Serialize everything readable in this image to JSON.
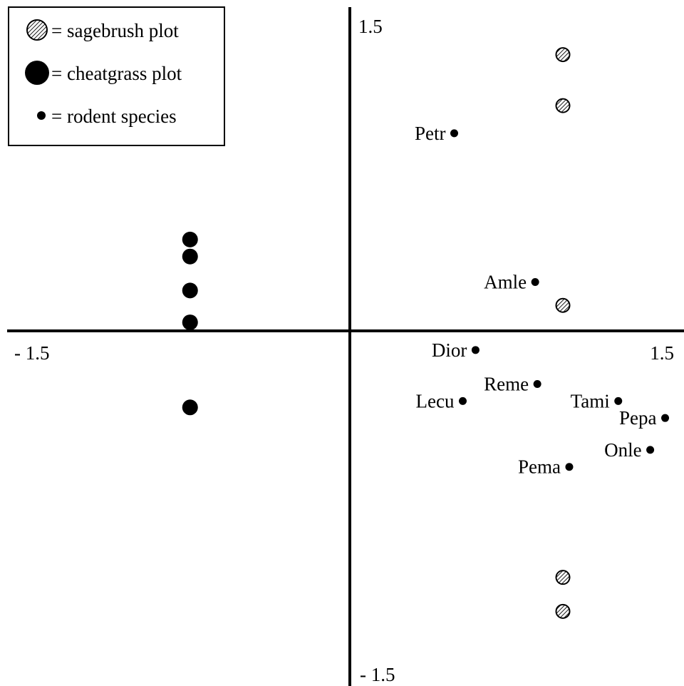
{
  "chart_data": {
    "type": "scatter",
    "xlim": [
      -1.5,
      1.5
    ],
    "ylim": [
      -1.5,
      1.5
    ],
    "tick_labels": {
      "x_min": "- 1.5",
      "x_max": "1.5",
      "y_max": "1.5",
      "y_min": "- 1.5"
    },
    "legend": {
      "placement": "top-left",
      "items": [
        {
          "label": "= sagebrush plot",
          "marker": "hatched-circle"
        },
        {
          "label": "= cheatgrass plot",
          "marker": "large-filled-circle"
        },
        {
          "label": "= rodent species",
          "marker": "small-filled-circle"
        }
      ]
    },
    "series": [
      {
        "marker": "hatched-circle",
        "points": [
          {
            "x": 1.0,
            "y": 1.3
          },
          {
            "x": 1.0,
            "y": 1.06
          },
          {
            "x": 1.0,
            "y": 0.12
          },
          {
            "x": 1.0,
            "y": -1.16
          },
          {
            "x": 1.0,
            "y": -1.32
          }
        ]
      },
      {
        "marker": "large-filled-circle",
        "points": [
          {
            "x": -0.75,
            "y": 0.43
          },
          {
            "x": -0.75,
            "y": 0.35
          },
          {
            "x": -0.75,
            "y": 0.19
          },
          {
            "x": -0.75,
            "y": 0.04
          },
          {
            "x": -0.75,
            "y": -0.36
          }
        ]
      },
      {
        "marker": "small-filled-circle",
        "points": [
          {
            "label": "Petr",
            "x": 0.49,
            "y": 0.93
          },
          {
            "label": "Amle",
            "x": 0.87,
            "y": 0.23
          },
          {
            "label": "Dior",
            "x": 0.59,
            "y": -0.09
          },
          {
            "label": "Reme",
            "x": 0.88,
            "y": -0.25
          },
          {
            "label": "Lecu",
            "x": 0.53,
            "y": -0.33
          },
          {
            "label": "Tami",
            "x": 1.26,
            "y": -0.33
          },
          {
            "label": "Pepa",
            "x": 1.48,
            "y": -0.41
          },
          {
            "label": "Onle",
            "x": 1.41,
            "y": -0.56
          },
          {
            "label": "Pema",
            "x": 1.03,
            "y": -0.64
          }
        ]
      }
    ]
  }
}
